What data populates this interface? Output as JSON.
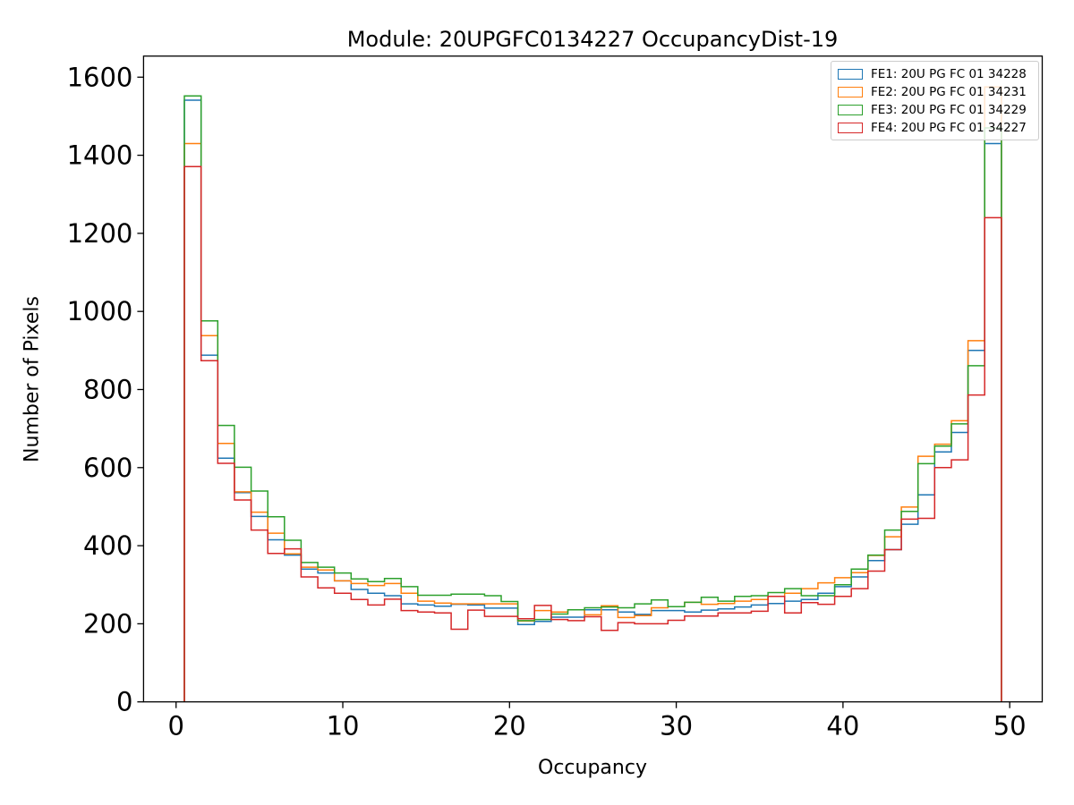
{
  "chart_data": {
    "type": "step-histogram",
    "title": "Module: 20UPGFC0134227 OccupancyDist-19",
    "xlabel": "Occupancy",
    "ylabel": "Number of Pixels",
    "x_ticks": [
      0,
      10,
      20,
      30,
      40,
      50
    ],
    "y_ticks": [
      0,
      200,
      400,
      600,
      800,
      1000,
      1200,
      1400,
      1600
    ],
    "xlim": [
      -1.95,
      51.95
    ],
    "ylim": [
      0,
      1654
    ],
    "grid": false,
    "legend_position": "upper right",
    "bins": {
      "start": 0.5,
      "width": 1,
      "count": 49
    },
    "series": [
      {
        "name": "FE1: 20U PG FC 01 34228",
        "color": "#1f77b4",
        "values": [
          1541,
          888,
          624,
          536,
          475,
          415,
          376,
          340,
          330,
          310,
          288,
          278,
          272,
          251,
          248,
          245,
          250,
          248,
          240,
          240,
          198,
          206,
          217,
          217,
          236,
          236,
          230,
          224,
          234,
          234,
          230,
          235,
          238,
          243,
          248,
          252,
          258,
          262,
          278,
          295,
          320,
          362,
          390,
          455,
          530,
          640,
          690,
          900,
          1430
        ]
      },
      {
        "name": "FE2: 20U PG FC 01 34231",
        "color": "#ff7f0e",
        "values": [
          1430,
          938,
          662,
          538,
          486,
          432,
          379,
          345,
          338,
          310,
          303,
          298,
          303,
          278,
          258,
          253,
          251,
          251,
          251,
          251,
          207,
          234,
          230,
          236,
          223,
          246,
          216,
          221,
          241,
          244,
          255,
          250,
          252,
          258,
          262,
          270,
          278,
          290,
          305,
          318,
          331,
          375,
          423,
          499,
          629,
          660,
          720,
          925,
          1575
        ]
      },
      {
        "name": "FE3: 20U PG FC 01 34229",
        "color": "#2ca02c",
        "values": [
          1552,
          976,
          708,
          601,
          540,
          474,
          414,
          357,
          345,
          330,
          315,
          308,
          316,
          295,
          273,
          273,
          276,
          276,
          272,
          257,
          208,
          211,
          225,
          236,
          241,
          243,
          241,
          251,
          261,
          244,
          255,
          268,
          258,
          270,
          272,
          280,
          290,
          272,
          272,
          300,
          340,
          376,
          440,
          488,
          610,
          655,
          712,
          861,
          1470
        ]
      },
      {
        "name": "FE4: 20U PG FC 01 34227",
        "color": "#d62728",
        "values": [
          1371,
          874,
          611,
          517,
          440,
          380,
          392,
          320,
          292,
          278,
          262,
          248,
          263,
          234,
          230,
          228,
          186,
          235,
          219,
          219,
          213,
          247,
          211,
          208,
          218,
          183,
          203,
          200,
          200,
          209,
          220,
          220,
          228,
          228,
          232,
          270,
          228,
          254,
          250,
          270,
          290,
          335,
          390,
          468,
          470,
          600,
          620,
          786,
          1240
        ]
      }
    ]
  }
}
